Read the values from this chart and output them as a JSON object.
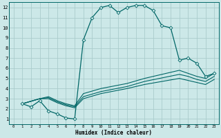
{
  "title": "",
  "xlabel": "Humidex (Indice chaleur)",
  "bg_color": "#cce8e8",
  "grid_color": "#aacccc",
  "line_color": "#006666",
  "xlim": [
    -0.5,
    23.5
  ],
  "ylim": [
    0.5,
    12.5
  ],
  "xticks": [
    0,
    1,
    2,
    3,
    4,
    5,
    6,
    7,
    8,
    9,
    10,
    11,
    12,
    13,
    14,
    15,
    16,
    17,
    18,
    19,
    20,
    21,
    22,
    23
  ],
  "yticks": [
    1,
    2,
    3,
    4,
    5,
    6,
    7,
    8,
    9,
    10,
    11,
    12
  ],
  "series1_x": [
    1,
    2,
    3,
    4,
    5,
    6,
    7,
    8,
    9,
    10,
    11,
    12,
    13,
    14,
    15,
    16,
    17,
    18,
    19,
    20,
    21,
    22,
    23
  ],
  "series1_y": [
    2.5,
    2.2,
    2.8,
    1.8,
    1.5,
    1.1,
    1.0,
    8.8,
    11.0,
    12.0,
    12.2,
    11.5,
    12.0,
    12.2,
    12.2,
    11.7,
    10.2,
    10.0,
    6.8,
    7.0,
    6.5,
    5.2,
    5.5
  ],
  "series2_x": [
    1,
    3,
    4,
    5,
    6,
    7,
    8,
    10,
    13,
    15,
    19,
    20,
    21,
    22,
    23
  ],
  "series2_y": [
    2.5,
    3.0,
    3.2,
    2.8,
    2.5,
    2.3,
    3.5,
    4.0,
    4.5,
    5.0,
    5.8,
    5.5,
    5.2,
    5.0,
    5.5
  ],
  "series3_x": [
    1,
    3,
    4,
    5,
    6,
    7,
    8,
    10,
    13,
    15,
    19,
    20,
    21,
    22,
    23
  ],
  "series3_y": [
    2.5,
    3.0,
    3.1,
    2.7,
    2.4,
    2.2,
    3.2,
    3.7,
    4.2,
    4.7,
    5.4,
    5.2,
    4.9,
    4.7,
    5.2
  ],
  "series4_x": [
    1,
    3,
    4,
    5,
    6,
    7,
    8,
    10,
    13,
    15,
    19,
    20,
    21,
    22,
    23
  ],
  "series4_y": [
    2.5,
    3.0,
    3.0,
    2.6,
    2.3,
    2.1,
    3.0,
    3.5,
    4.0,
    4.4,
    5.0,
    4.8,
    4.6,
    4.4,
    4.9
  ]
}
